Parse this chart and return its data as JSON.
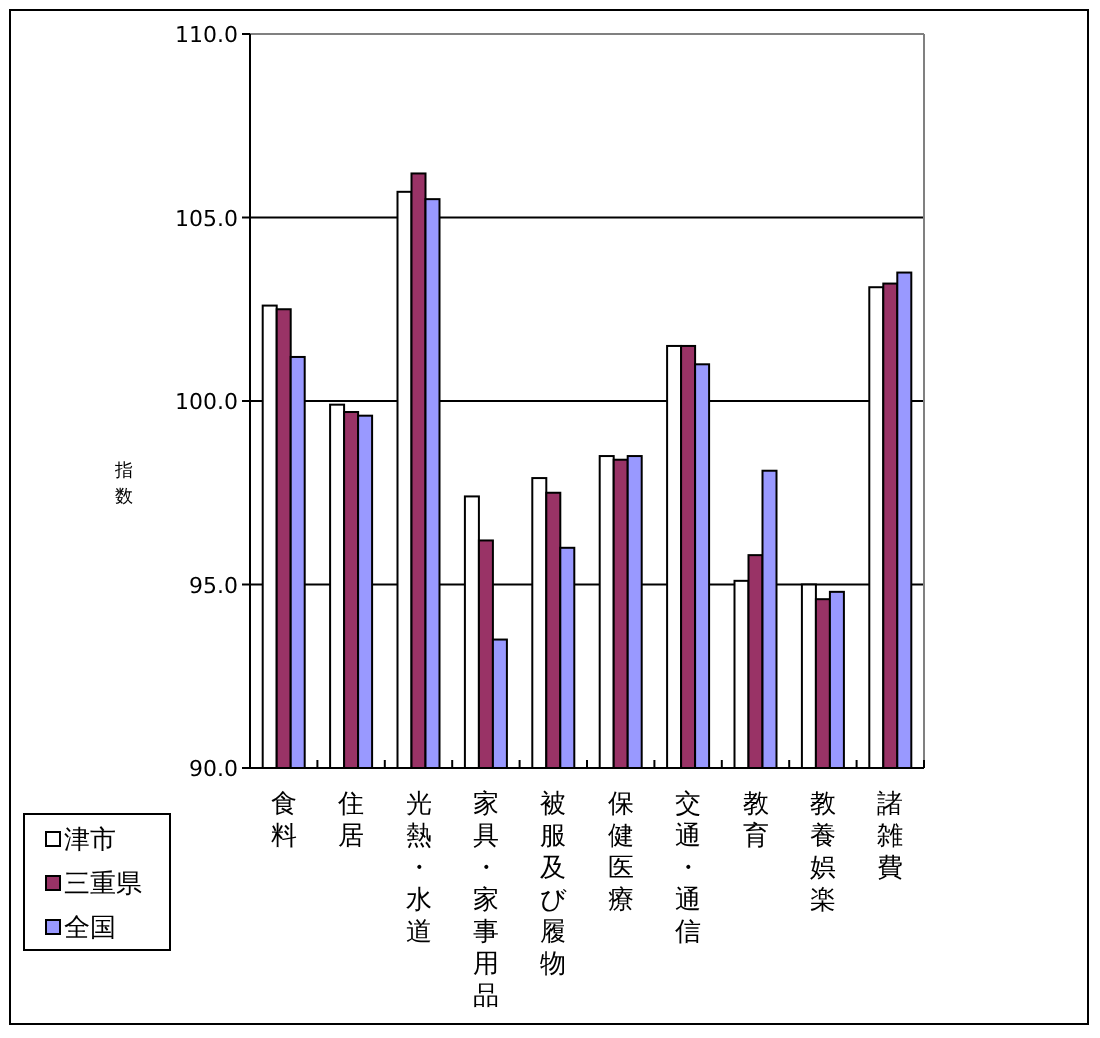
{
  "chart_data": {
    "type": "bar",
    "ylabel": "指数",
    "categories": [
      "食料",
      "住居",
      "光熱・水道",
      "家具・家事用品",
      "被服及び履物",
      "保健医療",
      "交通・通信",
      "教育",
      "教養娯楽",
      "諸雑費"
    ],
    "series": [
      {
        "name": "津市",
        "color": "#ffffff",
        "values": [
          102.6,
          99.9,
          105.7,
          97.4,
          97.9,
          98.5,
          101.5,
          95.1,
          95.0,
          103.1
        ]
      },
      {
        "name": "三重県",
        "color": "#993366",
        "values": [
          102.5,
          99.7,
          106.2,
          96.2,
          97.5,
          98.4,
          101.5,
          95.8,
          94.6,
          103.2
        ]
      },
      {
        "name": "全国",
        "color": "#9999ff",
        "values": [
          101.2,
          99.6,
          105.5,
          93.5,
          96.0,
          98.5,
          101.0,
          98.1,
          94.8,
          103.5
        ]
      }
    ],
    "ylim": [
      90,
      110
    ],
    "yticks": [
      {
        "value": 90,
        "label": "90.0"
      },
      {
        "value": 95,
        "label": "95.0"
      },
      {
        "value": 100,
        "label": "100.0"
      },
      {
        "value": 105,
        "label": "105.0"
      },
      {
        "value": 110,
        "label": "110.0"
      }
    ],
    "grid": "y",
    "legend": "bottom left"
  }
}
